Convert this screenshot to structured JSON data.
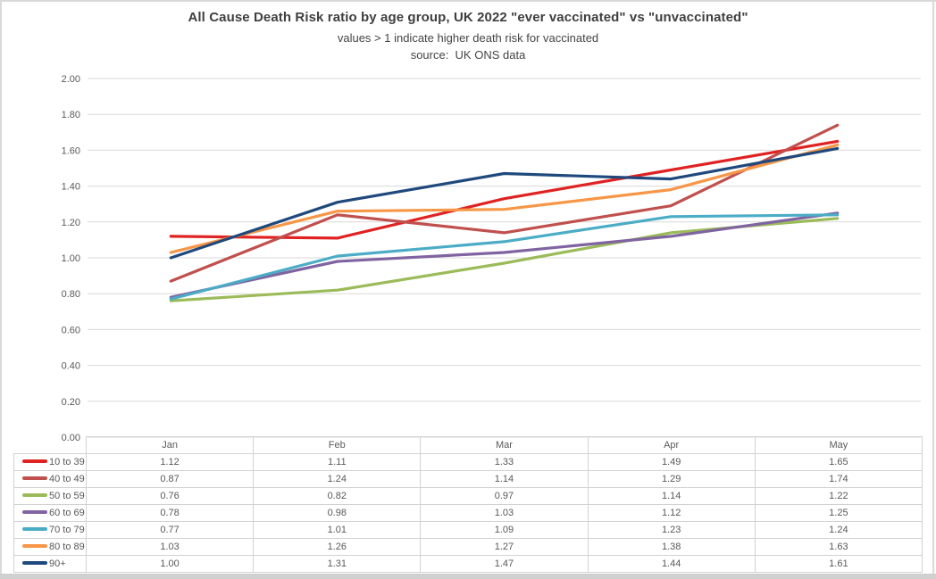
{
  "window": {
    "background": "#ffffff",
    "frame_color": "#d9d9d9",
    "bottom_bar_color": "#d0d0d0"
  },
  "header": {
    "title": "All Cause Death Risk ratio by age group, UK 2022 \"ever vaccinated\" vs \"unvaccinated\"",
    "subtitle": "values > 1 indicate higher death risk for vaccinated",
    "source": "source:  UK ONS data"
  },
  "chart_data": {
    "type": "line",
    "title": "All Cause Death Risk ratio by age group, UK 2022 \"ever vaccinated\" vs \"unvaccinated\"",
    "subtitle": "values > 1 indicate higher death risk for vaccinated",
    "source_note": "source:  UK ONS data",
    "categories": [
      "Jan",
      "Feb",
      "Mar",
      "Apr",
      "May"
    ],
    "series": [
      {
        "name": "10 to 39",
        "color": "#E02222",
        "values": [
          1.12,
          1.11,
          1.33,
          1.49,
          1.65
        ]
      },
      {
        "name": "40 to 49",
        "color": "#C0504D",
        "values": [
          0.87,
          1.24,
          1.14,
          1.29,
          1.74
        ]
      },
      {
        "name": "50 to 59",
        "color": "#9BBB59",
        "values": [
          0.76,
          0.82,
          0.97,
          1.14,
          1.22
        ]
      },
      {
        "name": "60 to 69",
        "color": "#8064A2",
        "values": [
          0.78,
          0.98,
          1.03,
          1.12,
          1.25
        ]
      },
      {
        "name": "70 to 79",
        "color": "#4BACC6",
        "values": [
          0.77,
          1.01,
          1.09,
          1.23,
          1.24
        ]
      },
      {
        "name": "80 to 89",
        "color": "#F79646",
        "values": [
          1.03,
          1.26,
          1.27,
          1.38,
          1.63
        ]
      },
      {
        "name": "90+",
        "color": "#1F497D",
        "values": [
          1.0,
          1.31,
          1.47,
          1.44,
          1.61
        ]
      }
    ],
    "ylim": [
      0,
      2
    ],
    "ytick_step": 0.2,
    "y_tick_labels": [
      "0.00",
      "0.20",
      "0.40",
      "0.60",
      "0.80",
      "1.00",
      "1.20",
      "1.40",
      "1.60",
      "1.80",
      "2.00"
    ],
    "value_decimals": 2,
    "grid": true,
    "gridline_color": "#d9d9d9",
    "axis_text_color": "#595959",
    "legend_position": "table-left-column"
  }
}
